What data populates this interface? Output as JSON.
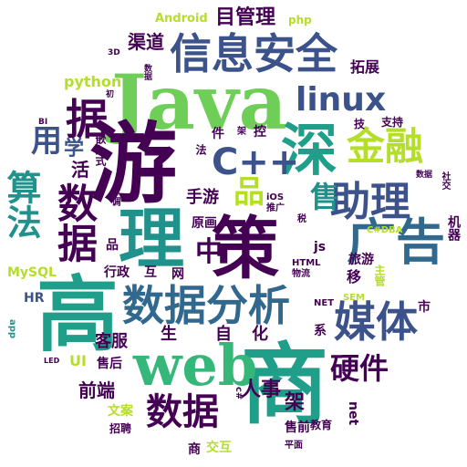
{
  "palette": {
    "purple": "#440154",
    "indigo": "#3b528b",
    "blue": "#31688e",
    "teal": "#21918c",
    "sea": "#1f9e89",
    "green": "#35b779",
    "lime": "#6ece58",
    "yellow": "#b5de2b",
    "bright": "#fde725",
    "background": "#ffffff"
  },
  "words": {
    "java": "Java",
    "you": "游",
    "shen": "深",
    "li": "理",
    "ce": "策",
    "shang": "商",
    "gao": "高",
    "xinxi_anquan": "信息安全",
    "shuju_fenxi": "数据分析",
    "guanggao": "广告",
    "web": "web",
    "meiti": "媒体",
    "zhuli": "助理",
    "jinrong": "金融",
    "linux": "linux",
    "cpp": "C++",
    "suanfa": "算法",
    "shuju_left": "数据",
    "shuju_bottom": "数据",
    "ju": "据",
    "pin": "品",
    "shou": "售",
    "zhong": "中",
    "yingjian": "硬件",
    "mu_guanli": "目管理",
    "qudao": "渠道",
    "tuozhan": "拓展",
    "android": "Android",
    "php": "php",
    "python": "python",
    "yong": "用",
    "xue": "学",
    "huo": "活",
    "qianrushi": "嵌入式",
    "mysql": "MySQL",
    "hr": "HR",
    "ui": "UI",
    "app": "app",
    "led": "LED",
    "qianduan": "前端",
    "wenan": "文案",
    "zhaopin": "招聘",
    "kefu": "客服",
    "shouhou": "售后",
    "xingzheng": "行政",
    "hu": "互",
    "wang": "网",
    "sheng": "生",
    "zi": "自",
    "hua": "化",
    "shouyou": "手游",
    "yuanhua": "原画",
    "ios": "iOS",
    "tuiguang": "推广",
    "shui": "税",
    "js": "js",
    "html": "HTML",
    "wuliu": "物流",
    "net_upper": "NET",
    "xi": "系",
    "jia": "架",
    "net_lower": "net",
    "jiaoyu": "教育",
    "csharp": "c#",
    "renshi": "人事",
    "shouqian": "售前",
    "jiaohu": "交互",
    "pingmian": "平面",
    "shang_small": "商",
    "lvyou": "旅游",
    "yi": "移",
    "zhuguan": "主管",
    "sem": "SEM",
    "shi": "市",
    "jiqi": "机器",
    "shejiao": "社交",
    "shuju_small": "数据",
    "ji": "技",
    "zhichi": "支持",
    "jian": "件",
    "kong": "控",
    "jia_small": "架",
    "sanD": "3D",
    "shuju_tiny": "数据",
    "bi": "BI",
    "chu": "初",
    "tiao": "调",
    "fa": "法",
    "cs_dba": "C#DBA",
    "pin_small": "品"
  }
}
